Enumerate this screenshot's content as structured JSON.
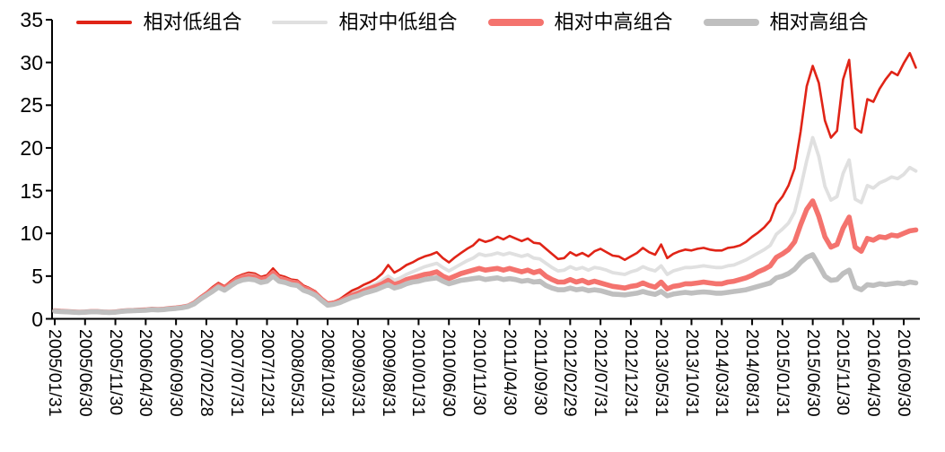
{
  "legend": {
    "items": [
      {
        "label": "相对低组合",
        "color": "#E02417",
        "style": "thin"
      },
      {
        "label": "相对中低组合",
        "color": "#E0E0E0",
        "style": "thin"
      },
      {
        "label": "相对中高组合",
        "color": "#F4736E",
        "style": "thick"
      },
      {
        "label": "相对高组合",
        "color": "#BFBFBF",
        "style": "thick"
      }
    ]
  },
  "chart_data": {
    "type": "line",
    "title": "",
    "xlabel": "",
    "ylabel": "",
    "ylim": [
      0,
      35
    ],
    "y_ticks": [
      0,
      5,
      10,
      15,
      20,
      25,
      30,
      35
    ],
    "grid": "off",
    "legend_position": "top",
    "x_unit": "month",
    "months_per_tick": 5,
    "x_tick_labels": [
      "2005/01/31",
      "2005/06/30",
      "2005/11/30",
      "2006/04/30",
      "2006/09/30",
      "2007/02/28",
      "2007/07/31",
      "2007/12/31",
      "2008/05/31",
      "2008/10/31",
      "2009/03/31",
      "2009/08/31",
      "2010/01/31",
      "2010/06/30",
      "2010/11/30",
      "2011/04/30",
      "2011/09/30",
      "2012/02/29",
      "2012/07/31",
      "2012/12/31",
      "2013/05/31",
      "2013/10/31",
      "2014/03/31",
      "2014/08/31",
      "2015/01/31",
      "2015/06/30",
      "2015/11/30",
      "2016/04/30",
      "2016/09/30"
    ],
    "series": [
      {
        "name": "相对低组合",
        "color": "#E02417",
        "width": 2.6,
        "values": [
          1.0,
          0.95,
          0.9,
          0.85,
          0.8,
          0.85,
          0.9,
          0.9,
          0.85,
          0.8,
          0.85,
          0.95,
          1.0,
          1.05,
          1.1,
          1.1,
          1.2,
          1.15,
          1.2,
          1.3,
          1.35,
          1.45,
          1.6,
          2.0,
          2.6,
          3.1,
          3.7,
          4.2,
          3.8,
          4.4,
          4.9,
          5.2,
          5.4,
          5.3,
          4.9,
          5.1,
          5.9,
          5.1,
          4.9,
          4.6,
          4.5,
          3.9,
          3.6,
          3.2,
          2.5,
          1.9,
          2.0,
          2.3,
          2.8,
          3.3,
          3.6,
          4.0,
          4.3,
          4.7,
          5.3,
          6.3,
          5.4,
          5.8,
          6.3,
          6.6,
          7.0,
          7.3,
          7.5,
          7.8,
          7.1,
          6.6,
          7.2,
          7.7,
          8.2,
          8.6,
          9.3,
          9.0,
          9.2,
          9.6,
          9.3,
          9.7,
          9.4,
          9.1,
          9.4,
          8.9,
          8.8,
          8.2,
          7.6,
          7.0,
          7.1,
          7.8,
          7.4,
          7.7,
          7.3,
          7.9,
          8.2,
          7.8,
          7.4,
          7.3,
          6.9,
          7.3,
          7.7,
          8.3,
          7.8,
          7.5,
          8.7,
          7.1,
          7.6,
          7.9,
          8.1,
          8.0,
          8.2,
          8.3,
          8.1,
          8.0,
          8.0,
          8.3,
          8.4,
          8.6,
          9.0,
          9.6,
          10.1,
          10.7,
          11.5,
          13.4,
          14.3,
          15.6,
          17.6,
          21.9,
          27.2,
          29.6,
          27.6,
          23.2,
          21.2,
          22.0,
          28.0,
          30.3,
          22.3,
          21.8,
          25.7,
          25.4,
          26.9,
          28.0,
          28.9,
          28.5,
          29.9,
          31.1,
          29.4
        ]
      },
      {
        "name": "相对中低组合",
        "color": "#E0E0E0",
        "width": 3.8,
        "values": [
          0.95,
          0.9,
          0.87,
          0.83,
          0.78,
          0.82,
          0.87,
          0.87,
          0.82,
          0.78,
          0.82,
          0.92,
          0.97,
          1.0,
          1.05,
          1.06,
          1.15,
          1.1,
          1.15,
          1.25,
          1.3,
          1.4,
          1.55,
          1.9,
          2.5,
          3.0,
          3.5,
          4.0,
          3.65,
          4.2,
          4.7,
          5.0,
          5.15,
          5.05,
          4.7,
          4.85,
          5.5,
          4.85,
          4.65,
          4.4,
          4.3,
          3.7,
          3.45,
          3.05,
          2.4,
          1.8,
          1.9,
          2.15,
          2.5,
          2.9,
          3.2,
          3.5,
          3.8,
          4.1,
          4.5,
          5.0,
          4.5,
          4.8,
          5.2,
          5.5,
          5.8,
          6.1,
          6.3,
          6.5,
          6.0,
          5.6,
          6.0,
          6.4,
          6.8,
          7.1,
          7.6,
          7.4,
          7.5,
          7.7,
          7.5,
          7.7,
          7.5,
          7.3,
          7.5,
          7.1,
          7.0,
          6.5,
          6.0,
          5.6,
          5.7,
          6.1,
          5.8,
          6.0,
          5.7,
          6.0,
          5.9,
          5.7,
          5.4,
          5.3,
          5.2,
          5.5,
          5.7,
          6.1,
          5.8,
          5.6,
          6.2,
          5.2,
          5.6,
          5.8,
          6.0,
          6.0,
          6.1,
          6.2,
          6.1,
          6.0,
          6.0,
          6.2,
          6.3,
          6.6,
          6.9,
          7.3,
          7.7,
          8.1,
          8.6,
          9.9,
          10.5,
          11.2,
          12.5,
          15.3,
          18.5,
          21.2,
          19.0,
          15.5,
          13.9,
          14.3,
          17.0,
          18.6,
          14.0,
          13.6,
          15.6,
          15.3,
          15.9,
          16.2,
          16.6,
          16.4,
          16.9,
          17.7,
          17.3
        ]
      },
      {
        "name": "相对中高组合",
        "color": "#F4736E",
        "width": 5.6,
        "values": [
          0.93,
          0.88,
          0.85,
          0.81,
          0.77,
          0.8,
          0.85,
          0.85,
          0.8,
          0.77,
          0.8,
          0.9,
          0.95,
          0.98,
          1.02,
          1.04,
          1.12,
          1.08,
          1.12,
          1.22,
          1.27,
          1.36,
          1.5,
          1.85,
          2.4,
          2.9,
          3.4,
          3.9,
          3.55,
          4.1,
          4.6,
          4.9,
          5.0,
          4.9,
          4.6,
          4.75,
          5.4,
          4.7,
          4.55,
          4.3,
          4.2,
          3.6,
          3.35,
          2.95,
          2.3,
          1.75,
          1.85,
          2.05,
          2.4,
          2.75,
          3.0,
          3.3,
          3.55,
          3.8,
          4.1,
          4.5,
          4.0,
          4.25,
          4.6,
          4.8,
          5.0,
          5.2,
          5.3,
          5.5,
          5.0,
          4.7,
          5.0,
          5.3,
          5.5,
          5.7,
          5.9,
          5.7,
          5.8,
          5.9,
          5.7,
          5.9,
          5.7,
          5.5,
          5.7,
          5.4,
          5.6,
          5.0,
          4.6,
          4.3,
          4.3,
          4.6,
          4.3,
          4.5,
          4.2,
          4.4,
          4.2,
          4.0,
          3.8,
          3.7,
          3.6,
          3.8,
          3.9,
          4.2,
          3.9,
          3.7,
          4.3,
          3.5,
          3.8,
          3.9,
          4.1,
          4.1,
          4.2,
          4.3,
          4.2,
          4.1,
          4.1,
          4.3,
          4.4,
          4.6,
          4.8,
          5.1,
          5.5,
          5.8,
          6.2,
          7.2,
          7.6,
          8.1,
          9.0,
          11.0,
          12.8,
          13.8,
          12.0,
          9.6,
          8.4,
          8.7,
          10.6,
          11.9,
          8.4,
          7.9,
          9.4,
          9.2,
          9.6,
          9.5,
          9.8,
          9.7,
          10.0,
          10.3,
          10.4
        ]
      },
      {
        "name": "相对高组合",
        "color": "#BFBFBF",
        "width": 5.6,
        "values": [
          0.9,
          0.85,
          0.82,
          0.78,
          0.75,
          0.78,
          0.82,
          0.82,
          0.78,
          0.75,
          0.78,
          0.87,
          0.92,
          0.95,
          0.98,
          1.0,
          1.08,
          1.04,
          1.08,
          1.17,
          1.22,
          1.3,
          1.45,
          1.75,
          2.3,
          2.75,
          3.2,
          3.7,
          3.35,
          3.85,
          4.3,
          4.55,
          4.65,
          4.55,
          4.25,
          4.4,
          5.0,
          4.4,
          4.25,
          4.0,
          3.9,
          3.35,
          3.1,
          2.75,
          2.15,
          1.6,
          1.7,
          1.9,
          2.2,
          2.5,
          2.7,
          3.0,
          3.2,
          3.4,
          3.7,
          4.0,
          3.6,
          3.8,
          4.1,
          4.3,
          4.4,
          4.6,
          4.7,
          4.8,
          4.4,
          4.1,
          4.3,
          4.5,
          4.6,
          4.7,
          4.8,
          4.6,
          4.7,
          4.8,
          4.6,
          4.7,
          4.6,
          4.4,
          4.5,
          4.3,
          4.4,
          3.9,
          3.6,
          3.4,
          3.4,
          3.6,
          3.4,
          3.5,
          3.3,
          3.4,
          3.3,
          3.1,
          2.9,
          2.85,
          2.8,
          2.9,
          3.0,
          3.2,
          3.0,
          2.85,
          3.2,
          2.7,
          2.9,
          3.0,
          3.1,
          3.0,
          3.1,
          3.15,
          3.1,
          3.0,
          3.0,
          3.1,
          3.2,
          3.3,
          3.4,
          3.6,
          3.8,
          4.0,
          4.2,
          4.8,
          5.0,
          5.3,
          5.8,
          6.6,
          7.2,
          7.5,
          6.3,
          5.0,
          4.5,
          4.6,
          5.3,
          5.7,
          3.7,
          3.4,
          4.0,
          3.9,
          4.1,
          4.0,
          4.1,
          4.2,
          4.1,
          4.3,
          4.2
        ]
      }
    ],
    "axis_color": "#000000"
  }
}
